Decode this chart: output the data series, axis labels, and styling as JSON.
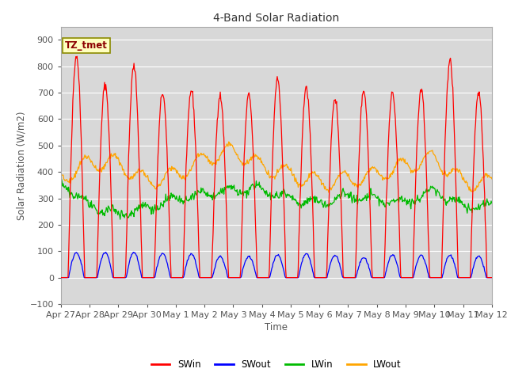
{
  "title": "4-Band Solar Radiation",
  "xlabel": "Time",
  "ylabel": "Solar Radiation (W/m2)",
  "ylim": [
    -100,
    950
  ],
  "yticks": [
    -100,
    0,
    100,
    200,
    300,
    400,
    500,
    600,
    700,
    800,
    900
  ],
  "annotation_text": "TZ_tmet",
  "annotation_color": "#8B0000",
  "annotation_bg": "#FFFFC0",
  "annotation_border": "#8B8B00",
  "colors": {
    "SWin": "#FF0000",
    "SWout": "#0000FF",
    "LWin": "#00BB00",
    "LWout": "#FFA500"
  },
  "fig_bg_color": "#FFFFFF",
  "plot_bg_color": "#D8D8D8",
  "grid_color": "#FFFFFF",
  "n_days": 15,
  "SWin_peaks": [
    840,
    730,
    800,
    700,
    710,
    690,
    690,
    750,
    720,
    680,
    710,
    700,
    710,
    820,
    700
  ],
  "SWout_peaks": [
    95,
    95,
    95,
    90,
    90,
    80,
    80,
    85,
    90,
    85,
    75,
    85,
    85,
    85,
    80
  ],
  "lwin_daily": [
    360,
    270,
    240,
    265,
    295,
    315,
    330,
    335,
    300,
    280,
    310,
    295,
    285,
    330,
    270
  ],
  "lwout_daily": [
    375,
    435,
    435,
    360,
    390,
    450,
    480,
    420,
    390,
    360,
    370,
    390,
    420,
    455,
    360
  ],
  "tick_labels": [
    "Apr 27",
    "Apr 28",
    "Apr 29",
    "Apr 30",
    "May 1",
    "May 2",
    "May 3",
    "May 4",
    "May 5",
    "May 6",
    "May 7",
    "May 8",
    "May 9",
    "May 10",
    "May 11",
    "May 12"
  ]
}
